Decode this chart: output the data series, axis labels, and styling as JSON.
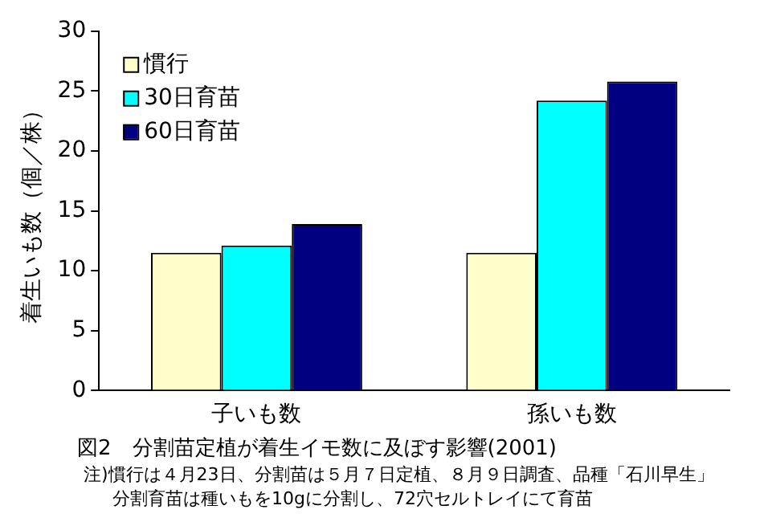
{
  "chart_data": {
    "type": "bar",
    "title": "図2　分割苗定植が着生イモ数に及ぼす影響(2001)",
    "ylabel": "着生いも数（個／株）",
    "categories": [
      "子いも数",
      "孫いも数"
    ],
    "series": [
      {
        "name": "慣行",
        "color": "#ffffcc",
        "values": [
          11.5,
          11.5
        ]
      },
      {
        "name": "30日育苗",
        "color": "#00ffff",
        "values": [
          12.1,
          24.2
        ]
      },
      {
        "name": "60日育苗",
        "color": "#000080",
        "values": [
          13.9,
          25.8
        ]
      }
    ],
    "ylim": [
      0,
      30
    ],
    "yticks": [
      0,
      5,
      10,
      15,
      20,
      25,
      30
    ],
    "grid": false,
    "legend": "top left",
    "annotations": [
      "注)慣行は４月23日、分割苗は５月７日定植、８月９日調査、品種「石川早生」",
      "分割育苗は種いもを10gに分割し、72穴セルトレイにて育苗"
    ]
  }
}
